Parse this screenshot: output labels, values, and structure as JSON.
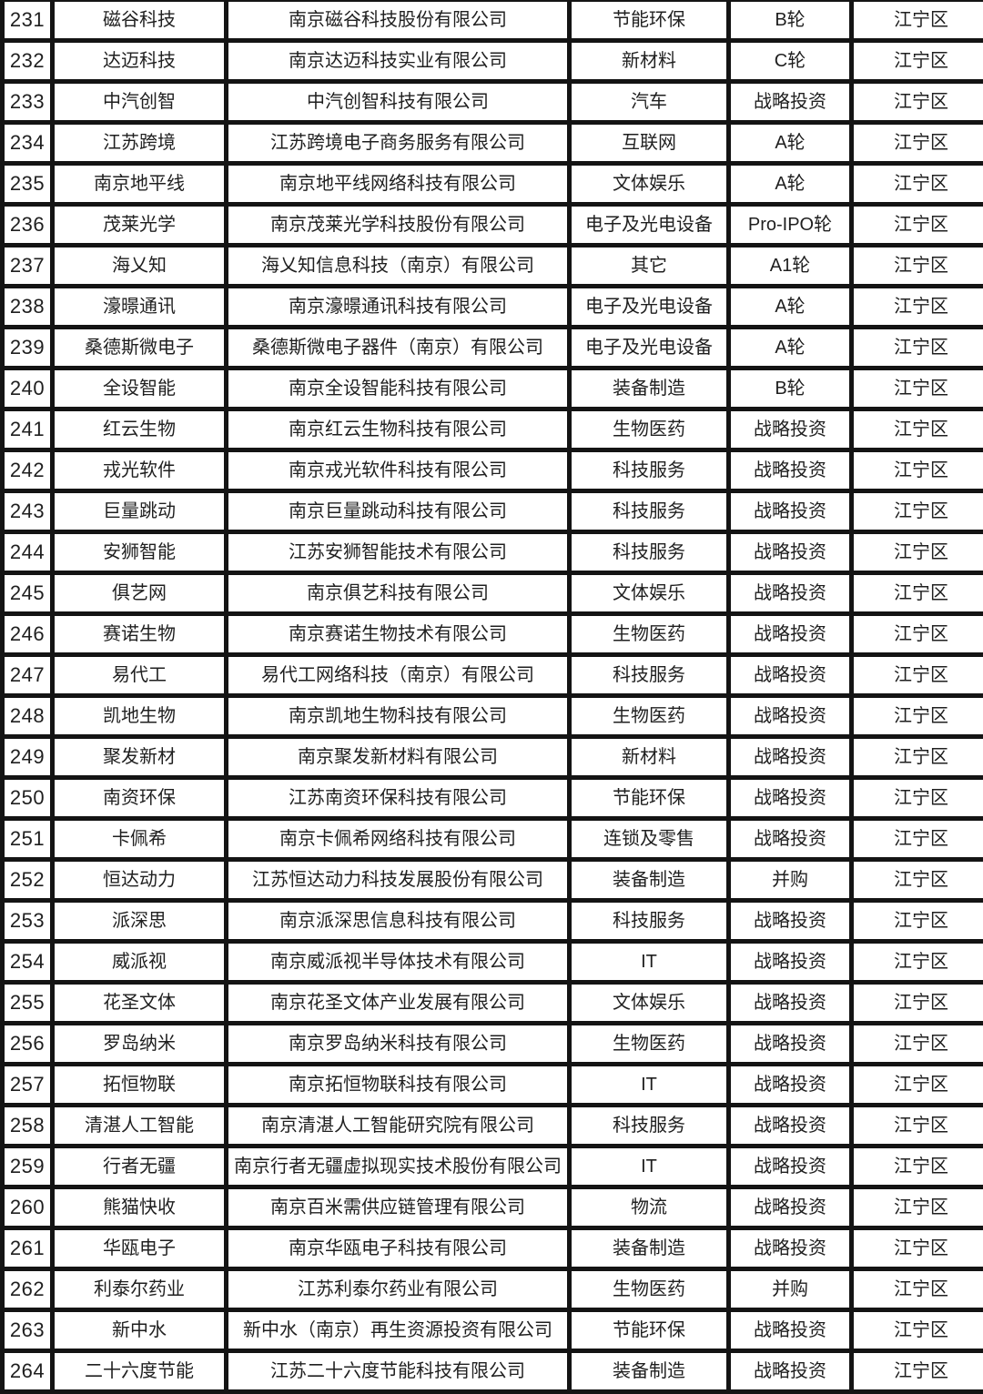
{
  "table": {
    "accent_border_color": "#141414",
    "district_common": "江宁区",
    "rows": [
      [
        "231",
        "磁谷科技",
        "南京磁谷科技股份有限公司",
        "节能环保",
        "B轮",
        "江宁区"
      ],
      [
        "232",
        "达迈科技",
        "南京达迈科技实业有限公司",
        "新材料",
        "C轮",
        "江宁区"
      ],
      [
        "233",
        "中汽创智",
        "中汽创智科技有限公司",
        "汽车",
        "战略投资",
        "江宁区"
      ],
      [
        "234",
        "江苏跨境",
        "江苏跨境电子商务服务有限公司",
        "互联网",
        "A轮",
        "江宁区"
      ],
      [
        "235",
        "南京地平线",
        "南京地平线网络科技有限公司",
        "文体娱乐",
        "A轮",
        "江宁区"
      ],
      [
        "236",
        "茂莱光学",
        "南京茂莱光学科技股份有限公司",
        "电子及光电设备",
        "Pro-IPO轮",
        "江宁区"
      ],
      [
        "237",
        "海乂知",
        "海乂知信息科技（南京）有限公司",
        "其它",
        "A1轮",
        "江宁区"
      ],
      [
        "238",
        "濠暻通讯",
        "南京濠暻通讯科技有限公司",
        "电子及光电设备",
        "A轮",
        "江宁区"
      ],
      [
        "239",
        "桑德斯微电子",
        "桑德斯微电子器件（南京）有限公司",
        "电子及光电设备",
        "A轮",
        "江宁区"
      ],
      [
        "240",
        "全设智能",
        "南京全设智能科技有限公司",
        "装备制造",
        "B轮",
        "江宁区"
      ],
      [
        "241",
        "红云生物",
        "南京红云生物科技有限公司",
        "生物医药",
        "战略投资",
        "江宁区"
      ],
      [
        "242",
        "戎光软件",
        "南京戎光软件科技有限公司",
        "科技服务",
        "战略投资",
        "江宁区"
      ],
      [
        "243",
        "巨量跳动",
        "南京巨量跳动科技有限公司",
        "科技服务",
        "战略投资",
        "江宁区"
      ],
      [
        "244",
        "安狮智能",
        "江苏安狮智能技术有限公司",
        "科技服务",
        "战略投资",
        "江宁区"
      ],
      [
        "245",
        "俱艺网",
        "南京俱艺科技有限公司",
        "文体娱乐",
        "战略投资",
        "江宁区"
      ],
      [
        "246",
        "赛诺生物",
        "南京赛诺生物技术有限公司",
        "生物医药",
        "战略投资",
        "江宁区"
      ],
      [
        "247",
        "易代工",
        "易代工网络科技（南京）有限公司",
        "科技服务",
        "战略投资",
        "江宁区"
      ],
      [
        "248",
        "凯地生物",
        "南京凯地生物科技有限公司",
        "生物医药",
        "战略投资",
        "江宁区"
      ],
      [
        "249",
        "聚发新材",
        "南京聚发新材料有限公司",
        "新材料",
        "战略投资",
        "江宁区"
      ],
      [
        "250",
        "南资环保",
        "江苏南资环保科技有限公司",
        "节能环保",
        "战略投资",
        "江宁区"
      ],
      [
        "251",
        "卡佩希",
        "南京卡佩希网络科技有限公司",
        "连锁及零售",
        "战略投资",
        "江宁区"
      ],
      [
        "252",
        "恒达动力",
        "江苏恒达动力科技发展股份有限公司",
        "装备制造",
        "并购",
        "江宁区"
      ],
      [
        "253",
        "派深思",
        "南京派深思信息科技有限公司",
        "科技服务",
        "战略投资",
        "江宁区"
      ],
      [
        "254",
        "威派视",
        "南京威派视半导体技术有限公司",
        "IT",
        "战略投资",
        "江宁区"
      ],
      [
        "255",
        "花圣文体",
        "南京花圣文体产业发展有限公司",
        "文体娱乐",
        "战略投资",
        "江宁区"
      ],
      [
        "256",
        "罗岛纳米",
        "南京罗岛纳米科技有限公司",
        "生物医药",
        "战略投资",
        "江宁区"
      ],
      [
        "257",
        "拓恒物联",
        "南京拓恒物联科技有限公司",
        "IT",
        "战略投资",
        "江宁区"
      ],
      [
        "258",
        "清湛人工智能",
        "南京清湛人工智能研究院有限公司",
        "科技服务",
        "战略投资",
        "江宁区"
      ],
      [
        "259",
        "行者无疆",
        "南京行者无疆虚拟现实技术股份有限公司",
        "IT",
        "战略投资",
        "江宁区"
      ],
      [
        "260",
        "熊猫快收",
        "南京百米需供应链管理有限公司",
        "物流",
        "战略投资",
        "江宁区"
      ],
      [
        "261",
        "华瓯电子",
        "南京华瓯电子科技有限公司",
        "装备制造",
        "战略投资",
        "江宁区"
      ],
      [
        "262",
        "利泰尔药业",
        "江苏利泰尔药业有限公司",
        "生物医药",
        "并购",
        "江宁区"
      ],
      [
        "263",
        "新中水",
        "新中水（南京）再生资源投资有限公司",
        "节能环保",
        "战略投资",
        "江宁区"
      ],
      [
        "264",
        "二十六度节能",
        "江苏二十六度节能科技有限公司",
        "装备制造",
        "战略投资",
        "江宁区"
      ]
    ]
  }
}
